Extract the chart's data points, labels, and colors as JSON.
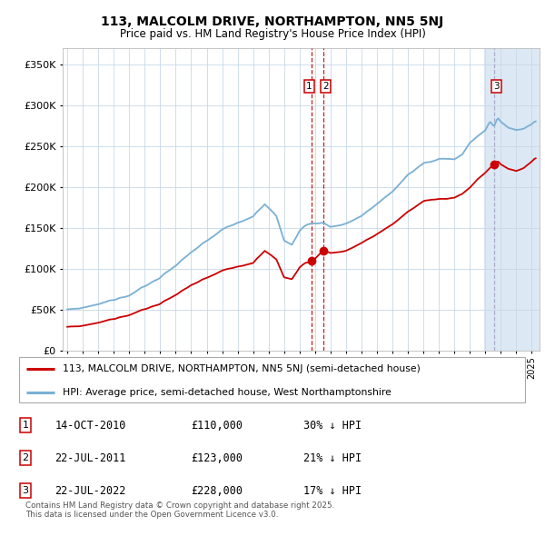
{
  "title": "113, MALCOLM DRIVE, NORTHAMPTON, NN5 5NJ",
  "subtitle": "Price paid vs. HM Land Registry's House Price Index (HPI)",
  "title_fontsize": 10,
  "subtitle_fontsize": 8.5,
  "hpi_color": "#7ab0d4",
  "price_color": "#cc0000",
  "bg_color": "#ffffff",
  "grid_color": "#c8d8e8",
  "ylim": [
    0,
    370000
  ],
  "yticks": [
    0,
    50000,
    100000,
    150000,
    200000,
    250000,
    300000,
    350000
  ],
  "ytick_labels": [
    "£0",
    "£50K",
    "£100K",
    "£150K",
    "£200K",
    "£250K",
    "£300K",
    "£350K"
  ],
  "xmin": 1994.7,
  "xmax": 2025.5,
  "xticks": [
    1995,
    1996,
    1997,
    1998,
    1999,
    2000,
    2001,
    2002,
    2003,
    2004,
    2005,
    2006,
    2007,
    2008,
    2009,
    2010,
    2011,
    2012,
    2013,
    2014,
    2015,
    2016,
    2017,
    2018,
    2019,
    2020,
    2021,
    2022,
    2023,
    2024,
    2025
  ],
  "transaction_dates": [
    2010.79,
    2011.55,
    2022.55
  ],
  "transaction_prices": [
    110000,
    123000,
    228000
  ],
  "transaction_labels": [
    "1",
    "2",
    "3"
  ],
  "vline1_x": 2010.79,
  "vline2_x": 2011.55,
  "vline3_x": 2022.55,
  "vline1_color": "#cc0000",
  "vline2_color": "#cc0000",
  "vline3_color": "#9999bb",
  "shade_x1": 2021.9,
  "shade_x2": 2025.5,
  "shade_color": "#dce8f4",
  "legend_entry1": "113, MALCOLM DRIVE, NORTHAMPTON, NN5 5NJ (semi-detached house)",
  "legend_entry2": "HPI: Average price, semi-detached house, West Northamptonshire",
  "table_entries": [
    {
      "num": "1",
      "date": "14-OCT-2010",
      "price": "£110,000",
      "pct": "30% ↓ HPI"
    },
    {
      "num": "2",
      "date": "22-JUL-2011",
      "price": "£123,000",
      "pct": "21% ↓ HPI"
    },
    {
      "num": "3",
      "date": "22-JUL-2022",
      "price": "£228,000",
      "pct": "17% ↓ HPI"
    }
  ],
  "footnote": "Contains HM Land Registry data © Crown copyright and database right 2025.\nThis data is licensed under the Open Government Licence v3.0."
}
